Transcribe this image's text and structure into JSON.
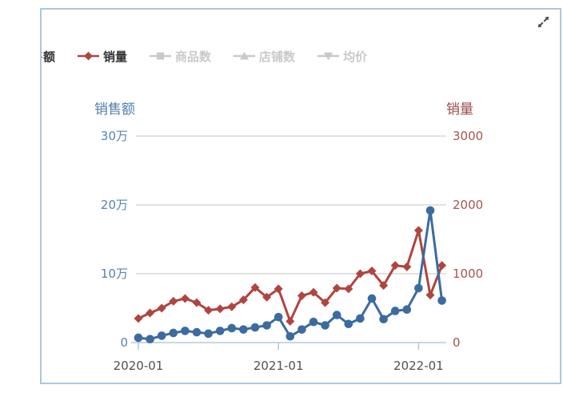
{
  "panel": {
    "border_color": "#adc6e0"
  },
  "toolbar": {
    "expand_icon": "expand-arrows",
    "icon_color": "#4a4a4a"
  },
  "legend": {
    "items": [
      {
        "key": "sales-amount",
        "label": "销售额",
        "marker": "circle",
        "color": "#3b6ba0",
        "active": true,
        "clipped": true
      },
      {
        "key": "sales-volume",
        "label": "销量",
        "marker": "diamond",
        "color": "#b0443f",
        "active": true,
        "clipped": false
      },
      {
        "key": "product-count",
        "label": "商品数",
        "marker": "square",
        "color": "#c9c9c9",
        "active": false,
        "clipped": false
      },
      {
        "key": "shop-count",
        "label": "店铺数",
        "marker": "triangle",
        "color": "#c9c9c9",
        "active": false,
        "clipped": false
      },
      {
        "key": "avg-price",
        "label": "均价",
        "marker": "triangle-down",
        "color": "#c9c9c9",
        "active": false,
        "clipped": false
      }
    ]
  },
  "chart_data": {
    "type": "line",
    "x": [
      "2020-01",
      "2020-02",
      "2020-03",
      "2020-04",
      "2020-05",
      "2020-06",
      "2020-07",
      "2020-08",
      "2020-09",
      "2020-10",
      "2020-11",
      "2020-12",
      "2021-01",
      "2021-02",
      "2021-03",
      "2021-04",
      "2021-05",
      "2021-06",
      "2021-07",
      "2021-08",
      "2021-09",
      "2021-10",
      "2021-11",
      "2021-12",
      "2022-01",
      "2022-02",
      "2022-03"
    ],
    "x_tick_labels": [
      "2020-01",
      "2021-01",
      "2022-01"
    ],
    "x_tick_indices": [
      0,
      12,
      24
    ],
    "series": [
      {
        "name": "销售额",
        "axis": "left",
        "unit": "万",
        "color": "#3b6ba0",
        "marker": "circle",
        "values": [
          0.7,
          0.5,
          1.0,
          1.4,
          1.7,
          1.5,
          1.3,
          1.7,
          2.1,
          1.9,
          2.2,
          2.5,
          3.7,
          0.9,
          1.9,
          3.0,
          2.5,
          4.0,
          2.7,
          3.5,
          6.4,
          3.4,
          4.6,
          4.8,
          7.9,
          19.2,
          6.1
        ]
      },
      {
        "name": "销量",
        "axis": "right",
        "unit": "",
        "color": "#b0443f",
        "marker": "diamond",
        "values": [
          350,
          430,
          500,
          600,
          640,
          580,
          470,
          490,
          520,
          620,
          800,
          660,
          780,
          310,
          680,
          730,
          580,
          790,
          780,
          1000,
          1040,
          830,
          1120,
          1100,
          1630,
          690,
          1120
        ]
      }
    ],
    "left_axis": {
      "title": "销售额",
      "title_color": "#4f7dad",
      "tick_color": "#5583b3",
      "ticks": [
        {
          "label": "30万",
          "value": 30
        },
        {
          "label": "20万",
          "value": 20
        },
        {
          "label": "10万",
          "value": 10
        },
        {
          "label": "0",
          "value": 0
        }
      ],
      "max": 30
    },
    "right_axis": {
      "title": "销量",
      "title_color": "#9a4b46",
      "tick_color": "#a3554f",
      "ticks": [
        {
          "label": "3000",
          "value": 3000
        },
        {
          "label": "2000",
          "value": 2000
        },
        {
          "label": "1000",
          "value": 1000
        },
        {
          "label": "0",
          "value": 0
        }
      ],
      "max": 3000
    },
    "x_label_color": "#55504a",
    "grid": true,
    "grid_color": "#d7d7d7",
    "axis_line_color": "#b9c8d8",
    "legend_position": "top"
  }
}
